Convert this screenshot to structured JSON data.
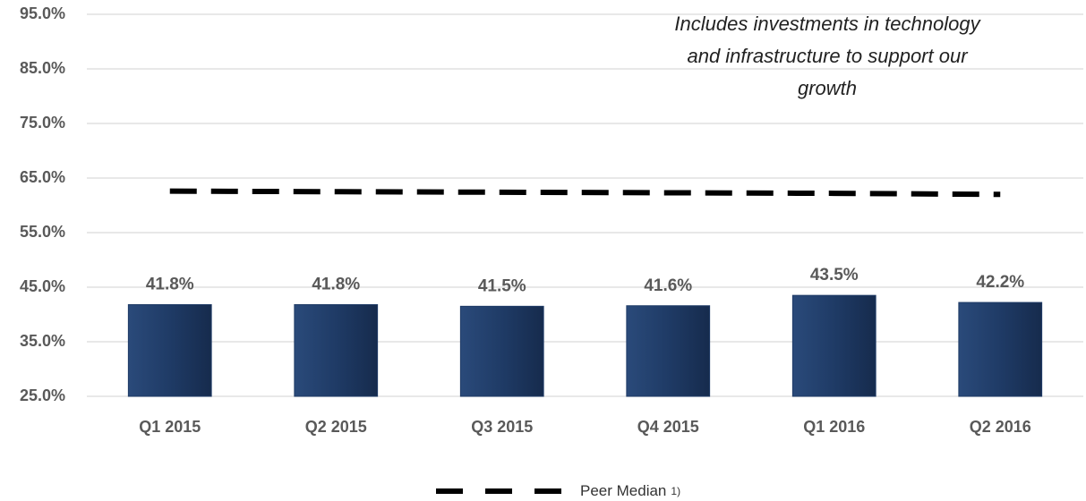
{
  "chart_data": {
    "type": "bar",
    "categories": [
      "Q1 2015",
      "Q2 2015",
      "Q3 2015",
      "Q4 2015",
      "Q1 2016",
      "Q2 2016"
    ],
    "values": [
      41.8,
      41.8,
      41.5,
      41.6,
      43.5,
      42.2
    ],
    "value_labels": [
      "41.8%",
      "41.8%",
      "41.5%",
      "41.6%",
      "43.5%",
      "42.2%"
    ],
    "color": "#1f3b66",
    "series": [
      {
        "name": "Peer Median",
        "color": "#000000",
        "dashed": true,
        "values": [
          62.6,
          62.5,
          62.4,
          62.3,
          62.2,
          62.0
        ]
      }
    ],
    "legend_note": "1)",
    "annotation": [
      "Includes investments in technology",
      "and infrastructure to support our",
      "growth"
    ],
    "ylim": [
      25,
      95
    ],
    "yticks": [
      {
        "value": 25,
        "label": "25.0%"
      },
      {
        "value": 35,
        "label": "35.0%"
      },
      {
        "value": 45,
        "label": "45.0%"
      },
      {
        "value": 55,
        "label": "55.0%"
      },
      {
        "value": 65,
        "label": "65.0%"
      },
      {
        "value": 75,
        "label": "75.0%"
      },
      {
        "value": 85,
        "label": "85.0%"
      },
      {
        "value": 95,
        "label": "95.0%"
      }
    ],
    "grid": true,
    "legend": "bottom"
  }
}
